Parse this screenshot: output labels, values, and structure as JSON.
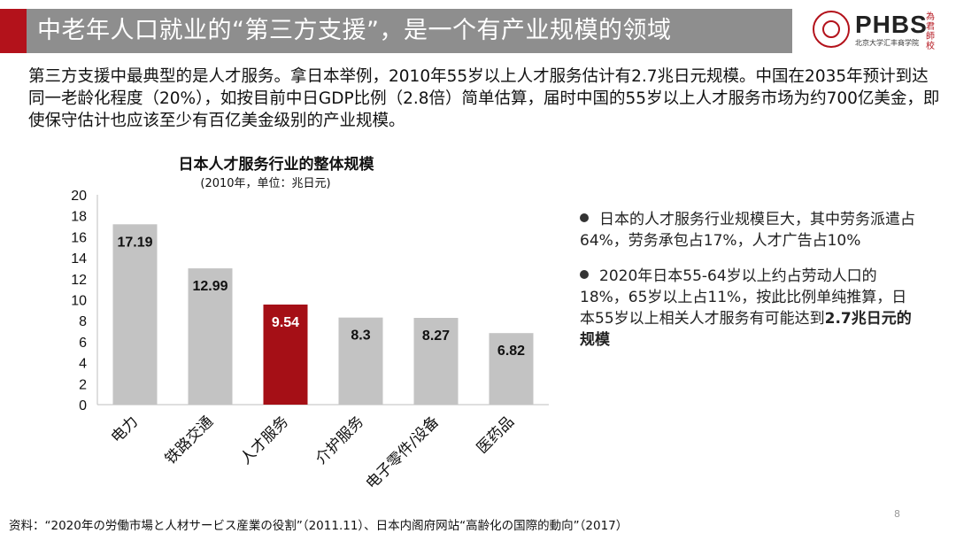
{
  "header": {
    "title": "中老年人口就业的“第三方支援”，是一个有产业规模的领域",
    "logo_text": "PHBS",
    "logo_subtext": "北京大学汇丰商学院",
    "logo_calligraphy": "為君師校",
    "accent_color": "#b3121b",
    "band_color": "#8e8e8e"
  },
  "intro": "第三方支援中最典型的是人才服务。拿日本举例，2010年55岁以上人才服务估计有2.7兆日元规模。中国在2035年预计到达同一老龄化程度（20%），如按目前中日GDP比例（2.8倍）简单估算，届时中国的55岁以上人才服务市场为约700亿美金，即使保守估计也应该至少有百亿美金级别的产业规模。",
  "bullets": {
    "b1": "日本的人才服务行业规模巨大，其中劳务派遣占64%，劳务承包占17%，人才广告占10%",
    "b2_text": "2020年日本55-64岁以上约占劳动人口的18%，65岁以上占11%，按此比例单纯推算，日本55岁以上相关人才服务有可能达到",
    "b2_emph": "2.7兆日元的规模"
  },
  "chart_data": {
    "type": "bar",
    "title": "日本人才服务行业的整体规模",
    "subtitle": "(2010年，单位：兆日元)",
    "categories": [
      "电力",
      "铁路交通",
      "人才服务",
      "介护服务",
      "电子零件/设备",
      "医药品"
    ],
    "values": [
      17.19,
      12.99,
      9.54,
      8.3,
      8.27,
      6.82
    ],
    "value_labels": [
      "17.19",
      "12.99",
      "9.54",
      "8.3",
      "8.27",
      "6.82"
    ],
    "highlight_index": 2,
    "bar_color": "#c3c3c3",
    "highlight_color": "#a50f16",
    "ylim": [
      0,
      20
    ],
    "yticks": [
      "0",
      "2",
      "4",
      "6",
      "8",
      "10",
      "12",
      "14",
      "16",
      "18",
      "20"
    ],
    "grid": false
  },
  "source": "资料：“2020年の労働市場と人材サービス産業の役割”（2011.11）、日本内阁府网站“高齢化の国際的動向”（2017）",
  "page_number": "8"
}
